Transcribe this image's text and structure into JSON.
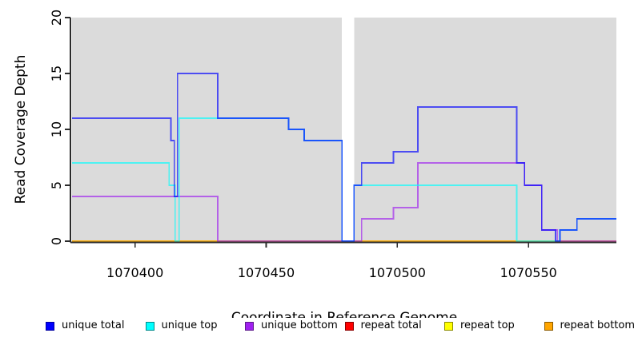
{
  "chart_data": {
    "type": "line",
    "title": "",
    "xlabel": "Coordinate in Reference Genome",
    "ylabel": "Read Coverage Depth",
    "xlim": [
      1070376,
      1070583.5
    ],
    "ylim": [
      0,
      20
    ],
    "x_ticks": [
      1070400,
      1070450,
      1070500,
      1070550
    ],
    "y_ticks": [
      0,
      5,
      10,
      15,
      20
    ],
    "grid": "off",
    "plot_bg_color": "#dbdbdb",
    "gap_region": [
      1070478.9,
      1070483.5
    ],
    "background_regions": [
      [
        1070376,
        1070478.9
      ],
      [
        1070483.5,
        1070583.5
      ]
    ],
    "axis_color": "#2b2b2b",
    "series": [
      {
        "name": "repeat total",
        "color": "#FF0000",
        "segments": [
          [
            [
              1070376,
              0
            ],
            [
              1070478.9,
              0
            ]
          ],
          [
            [
              1070483.5,
              0
            ],
            [
              1070583.5,
              0
            ]
          ]
        ]
      },
      {
        "name": "repeat top",
        "color": "#FFFF00",
        "segments": [
          [
            [
              1070376,
              0
            ],
            [
              1070478.9,
              0
            ]
          ],
          [
            [
              1070483.5,
              0
            ],
            [
              1070583.5,
              0
            ]
          ]
        ]
      },
      {
        "name": "repeat bottom",
        "color": "#FFA500",
        "segments": [
          [
            [
              1070376,
              0
            ],
            [
              1070478.9,
              0
            ]
          ],
          [
            [
              1070483.5,
              0
            ],
            [
              1070583.5,
              0
            ]
          ]
        ]
      },
      {
        "name": "unique bottom",
        "color": "#A020F0",
        "segments": [
          [
            [
              1070376,
              4
            ],
            [
              1070431.5,
              4
            ],
            [
              1070431.5,
              0
            ],
            [
              1070486.4,
              0
            ],
            [
              1070486.4,
              2
            ],
            [
              1070498.5,
              2
            ],
            [
              1070498.5,
              3
            ],
            [
              1070507.8,
              3
            ],
            [
              1070507.8,
              7
            ],
            [
              1070548.5,
              7
            ],
            [
              1070548.5,
              5
            ],
            [
              1070555,
              5
            ],
            [
              1070555,
              1
            ],
            [
              1070561,
              1
            ],
            [
              1070561,
              0
            ],
            [
              1070583.5,
              0
            ]
          ]
        ]
      },
      {
        "name": "unique top",
        "color": "#00FFFF",
        "segments": [
          [
            [
              1070376,
              7
            ],
            [
              1070413,
              7
            ],
            [
              1070413,
              5
            ],
            [
              1070415.3,
              5
            ],
            [
              1070415.3,
              0
            ],
            [
              1070416.8,
              0
            ],
            [
              1070416.8,
              11
            ],
            [
              1070458.5,
              11
            ],
            [
              1070458.5,
              10
            ],
            [
              1070464.5,
              10
            ],
            [
              1070464.5,
              9
            ],
            [
              1070478.9,
              9
            ],
            [
              1070478.9,
              0
            ],
            [
              1070483.5,
              0
            ],
            [
              1070483.5,
              5
            ],
            [
              1070545.5,
              5
            ],
            [
              1070545.5,
              0
            ],
            [
              1070562,
              0
            ],
            [
              1070562,
              1
            ],
            [
              1070568.5,
              1
            ],
            [
              1070568.5,
              2
            ],
            [
              1070583.5,
              2
            ]
          ]
        ]
      },
      {
        "name": "unique total",
        "color": "#0000FF",
        "segments": [
          [
            [
              1070376,
              11
            ],
            [
              1070413.7,
              11
            ],
            [
              1070413.7,
              9
            ],
            [
              1070415,
              9
            ],
            [
              1070415,
              4
            ],
            [
              1070416.2,
              4
            ],
            [
              1070416.2,
              15
            ],
            [
              1070431.5,
              15
            ],
            [
              1070431.5,
              11
            ],
            [
              1070458.5,
              11
            ],
            [
              1070458.5,
              10
            ],
            [
              1070464.5,
              10
            ],
            [
              1070464.5,
              9
            ],
            [
              1070478.9,
              9
            ],
            [
              1070478.9,
              0
            ],
            [
              1070483.5,
              0
            ],
            [
              1070483.5,
              5
            ],
            [
              1070486.4,
              5
            ],
            [
              1070486.4,
              7
            ],
            [
              1070498.5,
              7
            ],
            [
              1070498.5,
              8
            ],
            [
              1070507.8,
              8
            ],
            [
              1070507.8,
              12
            ],
            [
              1070545.5,
              12
            ],
            [
              1070545.5,
              7
            ],
            [
              1070548.5,
              7
            ],
            [
              1070548.5,
              5
            ],
            [
              1070555,
              5
            ],
            [
              1070555,
              1
            ],
            [
              1070560.3,
              1
            ],
            [
              1070560.3,
              0
            ],
            [
              1070562,
              0
            ],
            [
              1070562,
              1
            ],
            [
              1070568.5,
              1
            ],
            [
              1070568.5,
              2
            ],
            [
              1070583.5,
              2
            ]
          ]
        ]
      }
    ],
    "legend": {
      "position": "bottom",
      "items": [
        {
          "label": "unique total",
          "color": "#0000FF",
          "border": "#0000A0"
        },
        {
          "label": "unique top",
          "color": "#00FFFF",
          "border": "#008B8B"
        },
        {
          "label": "unique bottom",
          "color": "#A020F0",
          "border": "#5D1A8B"
        },
        {
          "label": "repeat total",
          "color": "#FF0000",
          "border": "#8B0000"
        },
        {
          "label": "repeat top",
          "color": "#FFFF00",
          "border": "#8B8B00"
        },
        {
          "label": "repeat bottom",
          "color": "#FFA500",
          "border": "#8B5A00"
        }
      ]
    }
  }
}
